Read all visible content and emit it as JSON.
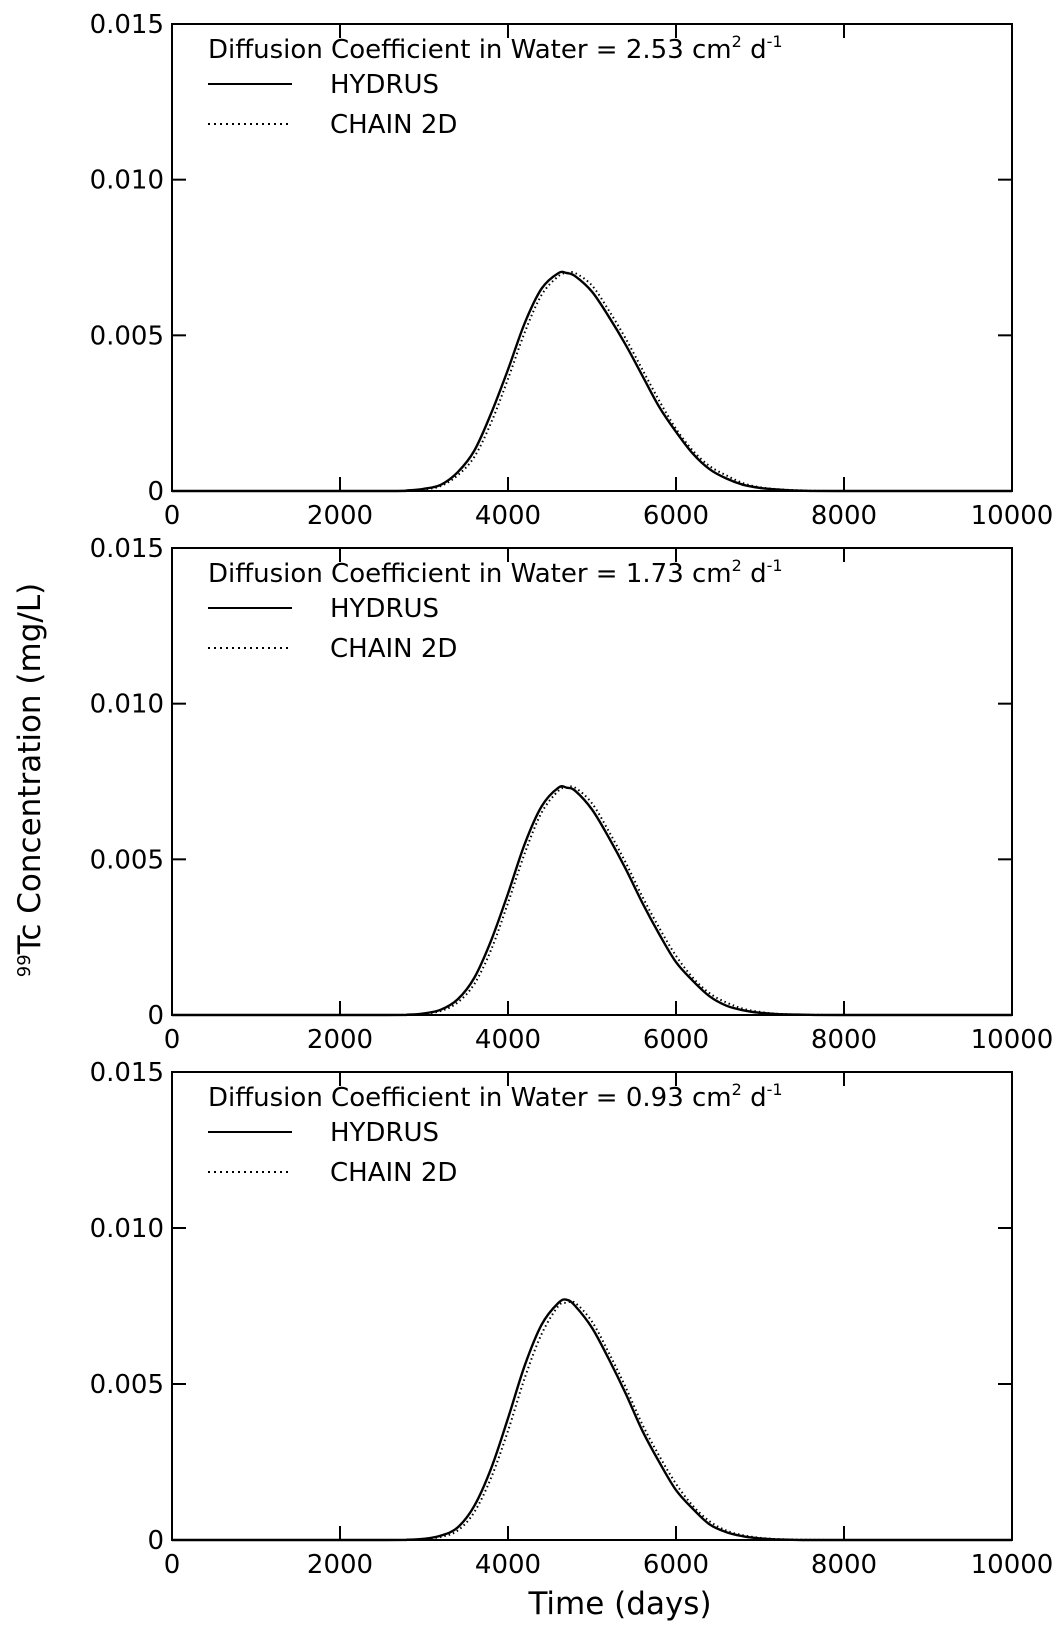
{
  "figure": {
    "ylabel_super": "99",
    "ylabel_main": "Tc Concentration (mg/L)",
    "xlabel": "Time (days)"
  },
  "chart_data": [
    {
      "type": "line",
      "annotation": {
        "text": "Diffusion Coefficient in Water = 2.53 cm",
        "unit_sup": "2",
        "unit_tail": " d",
        "unit_tail_sup": "-1"
      },
      "xlim": [
        0,
        10000
      ],
      "ylim": [
        0,
        0.015
      ],
      "x_ticks": [
        "0",
        "2000",
        "4000",
        "6000",
        "8000",
        "10000"
      ],
      "y_ticks": [
        "0",
        "0.005",
        "0.010",
        "0.015"
      ],
      "grid": false,
      "legend_placement": "top-left",
      "x": [
        2500,
        2800,
        3000,
        3200,
        3400,
        3600,
        3800,
        4000,
        4200,
        4400,
        4600,
        4700,
        4800,
        5000,
        5200,
        5400,
        5600,
        5800,
        6000,
        6200,
        6400,
        6600,
        6800,
        7000,
        7200,
        7500,
        8000
      ],
      "series": [
        {
          "name": "HYDRUS",
          "style": "solid",
          "values": [
            0.0,
            2e-05,
            7e-05,
            0.0002,
            0.0006,
            0.0013,
            0.0025,
            0.0039,
            0.0054,
            0.0065,
            0.007,
            0.007,
            0.0069,
            0.0064,
            0.0056,
            0.0047,
            0.0037,
            0.0027,
            0.0019,
            0.0012,
            0.0007,
            0.0004,
            0.0002,
            0.0001,
            5e-05,
            1e-05,
            0.0
          ]
        },
        {
          "name": "CHAIN 2D",
          "style": "dotted",
          "values": [
            0.0,
            1e-05,
            5e-05,
            0.00016,
            0.0005,
            0.0011,
            0.0022,
            0.0036,
            0.0051,
            0.0063,
            0.0069,
            0.007,
            0.007,
            0.0066,
            0.0058,
            0.0049,
            0.0039,
            0.0029,
            0.002,
            0.0013,
            0.0008,
            0.0005,
            0.00025,
            0.00012,
            6e-05,
            2e-05,
            0.0
          ]
        }
      ]
    },
    {
      "type": "line",
      "annotation": {
        "text": "Diffusion Coefficient in Water = 1.73 cm",
        "unit_sup": "2",
        "unit_tail": " d",
        "unit_tail_sup": "-1"
      },
      "xlim": [
        0,
        10000
      ],
      "ylim": [
        0,
        0.015
      ],
      "x_ticks": [
        "0",
        "2000",
        "4000",
        "6000",
        "8000",
        "10000"
      ],
      "y_ticks": [
        "0",
        "0.005",
        "0.010",
        "0.015"
      ],
      "grid": false,
      "legend_placement": "top-left",
      "x": [
        2500,
        2800,
        3000,
        3200,
        3400,
        3600,
        3800,
        4000,
        4200,
        4400,
        4600,
        4700,
        4800,
        5000,
        5200,
        5400,
        5600,
        5800,
        6000,
        6200,
        6400,
        6600,
        6800,
        7000,
        7200,
        7500,
        8000
      ],
      "series": [
        {
          "name": "HYDRUS",
          "style": "solid",
          "values": [
            0.0,
            1e-05,
            5e-05,
            0.00017,
            0.0005,
            0.0012,
            0.0024,
            0.0039,
            0.0055,
            0.0067,
            0.0073,
            0.0073,
            0.0072,
            0.0066,
            0.0057,
            0.0047,
            0.0036,
            0.0026,
            0.0017,
            0.0011,
            0.0006,
            0.0003,
            0.00015,
            7e-05,
            3e-05,
            1e-05,
            0.0
          ]
        },
        {
          "name": "CHAIN 2D",
          "style": "dotted",
          "values": [
            0.0,
            1e-05,
            4e-05,
            0.00013,
            0.0004,
            0.001,
            0.0021,
            0.0036,
            0.0052,
            0.0065,
            0.0072,
            0.0073,
            0.0073,
            0.0068,
            0.0059,
            0.0049,
            0.0038,
            0.0028,
            0.0019,
            0.0012,
            0.0007,
            0.0004,
            0.0002,
            0.0001,
            4e-05,
            1e-05,
            0.0
          ]
        }
      ]
    },
    {
      "type": "line",
      "annotation": {
        "text": "Diffusion Coefficient in Water = 0.93 cm",
        "unit_sup": "2",
        "unit_tail": " d",
        "unit_tail_sup": "-1"
      },
      "xlim": [
        0,
        10000
      ],
      "ylim": [
        0,
        0.015
      ],
      "x_ticks": [
        "0",
        "2000",
        "4000",
        "6000",
        "8000",
        "10000"
      ],
      "y_ticks": [
        "0",
        "0.005",
        "0.010",
        "0.015"
      ],
      "grid": false,
      "legend_placement": "top-left",
      "x": [
        2500,
        2800,
        3000,
        3200,
        3400,
        3600,
        3800,
        4000,
        4200,
        4400,
        4600,
        4700,
        4800,
        5000,
        5200,
        5400,
        5600,
        5800,
        6000,
        6200,
        6400,
        6600,
        6800,
        7000,
        7200,
        7500,
        8000
      ],
      "series": [
        {
          "name": "HYDRUS",
          "style": "solid",
          "values": [
            0.0,
            1e-05,
            4e-05,
            0.00014,
            0.0004,
            0.0011,
            0.0023,
            0.0039,
            0.0056,
            0.0069,
            0.0076,
            0.0077,
            0.0075,
            0.0068,
            0.0058,
            0.0047,
            0.0035,
            0.0025,
            0.0016,
            0.001,
            0.0005,
            0.00025,
            0.00012,
            5e-05,
            2e-05,
            0.0,
            0.0
          ]
        },
        {
          "name": "CHAIN 2D",
          "style": "dotted",
          "values": [
            0.0,
            0.0,
            3e-05,
            0.0001,
            0.0003,
            0.0009,
            0.002,
            0.0035,
            0.0052,
            0.0066,
            0.0075,
            0.0076,
            0.0076,
            0.007,
            0.006,
            0.0049,
            0.0037,
            0.0027,
            0.0018,
            0.0011,
            0.0006,
            0.0003,
            0.00015,
            7e-05,
            3e-05,
            1e-05,
            0.0
          ]
        }
      ]
    }
  ]
}
